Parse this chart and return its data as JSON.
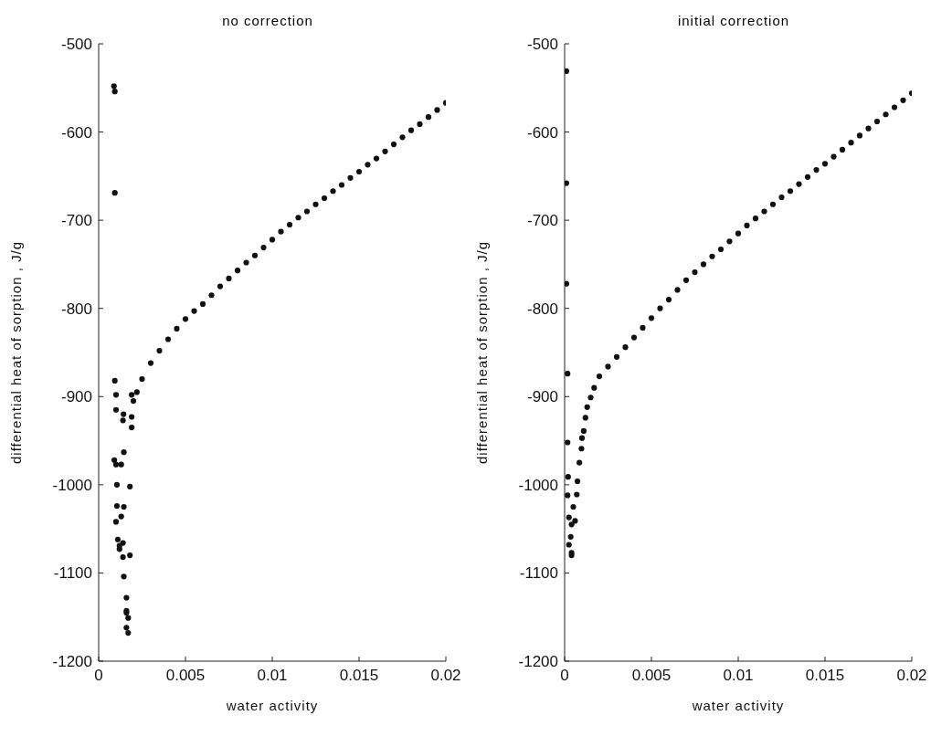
{
  "chart_data": [
    {
      "type": "scatter",
      "title": "no correction",
      "xlabel": "water activity",
      "ylabel": "differential heat of sorption , J/g",
      "xlim": [
        0,
        0.02
      ],
      "xticks": [
        0,
        0.005,
        0.01,
        0.015,
        0.02
      ],
      "ylim": [
        -1200,
        -500
      ],
      "yticks": [
        -1200,
        -1100,
        -1000,
        -900,
        -800,
        -700,
        -600,
        -500
      ],
      "grid": false,
      "marker": "circle",
      "series": [
        {
          "color": "#111111",
          "x": [
            0.00088,
            0.00093,
            0.00093,
            0.00093,
            0.001,
            0.001,
            0.00143,
            0.0014,
            0.0019,
            0.0019,
            0.0019,
            0.00145,
            0.0009,
            0.001,
            0.0013,
            0.00105,
            0.0018,
            0.00105,
            0.00145,
            0.0013,
            0.001,
            0.0011,
            0.0012,
            0.0012,
            0.0014,
            0.0018,
            0.0014,
            0.00145,
            0.0016,
            0.0016,
            0.0016,
            0.0017,
            0.0016,
            0.0017,
            0.002,
            0.0022,
            0.0025,
            0.003,
            0.0035,
            0.004,
            0.0045,
            0.005,
            0.0055,
            0.006,
            0.0065,
            0.007,
            0.0075,
            0.008,
            0.0085,
            0.009,
            0.0095,
            0.01,
            0.0105,
            0.011,
            0.0115,
            0.012,
            0.0125,
            0.013,
            0.0135,
            0.014,
            0.0145,
            0.015,
            0.0155,
            0.016,
            0.0165,
            0.017,
            0.0175,
            0.018,
            0.0185,
            0.019,
            0.0195,
            0.02
          ],
          "values": [
            -548,
            -554,
            -669,
            -882,
            -898,
            -915,
            -920,
            -927,
            -898,
            -923,
            -935,
            -963,
            -972,
            -977,
            -977,
            -1000,
            -1002,
            -1024,
            -1025,
            -1036,
            -1042,
            -1062,
            -1069,
            -1073,
            -1066,
            -1080,
            -1082,
            -1104,
            -1128,
            -1143,
            -1145,
            -1151,
            -1162,
            -1168,
            -905,
            -895,
            -880,
            -862,
            -848,
            -835,
            -823,
            -812,
            -803,
            -795,
            -785,
            -775,
            -766,
            -757,
            -748,
            -740,
            -731,
            -722,
            -713,
            -705,
            -697,
            -690,
            -682,
            -675,
            -667,
            -660,
            -652,
            -645,
            -637,
            -630,
            -622,
            -614,
            -606,
            -598,
            -591,
            -583,
            -575,
            -567
          ]
        }
      ]
    },
    {
      "type": "scatter",
      "title": "initial correction",
      "xlabel": "water activity",
      "ylabel": "differential heat of sorption , J/g",
      "xlim": [
        0,
        0.02
      ],
      "xticks": [
        0,
        0.005,
        0.01,
        0.015,
        0.02
      ],
      "ylim": [
        -1200,
        -500
      ],
      "yticks": [
        -1200,
        -1100,
        -1000,
        -900,
        -800,
        -700,
        -600,
        -500
      ],
      "grid": false,
      "marker": "circle",
      "series": [
        {
          "color": "#111111",
          "x": [
            0.0001,
            0.0001,
            0.0001,
            0.00017,
            0.00017,
            0.0002,
            0.00074,
            0.00017,
            0.0007,
            0.0005,
            0.00025,
            0.0006,
            0.0004,
            0.00035,
            0.00025,
            0.0004,
            0.0004,
            0.00085,
            0.00097,
            0.001,
            0.0011,
            0.0012,
            0.0013,
            0.0015,
            0.0017,
            0.002,
            0.0025,
            0.003,
            0.0035,
            0.004,
            0.0045,
            0.005,
            0.0055,
            0.006,
            0.0065,
            0.007,
            0.0075,
            0.008,
            0.0085,
            0.009,
            0.0095,
            0.01,
            0.0105,
            0.011,
            0.0115,
            0.012,
            0.0125,
            0.013,
            0.0135,
            0.014,
            0.0145,
            0.015,
            0.0155,
            0.016,
            0.0165,
            0.017,
            0.0175,
            0.018,
            0.0185,
            0.019,
            0.0195,
            0.02
          ],
          "values": [
            -531,
            -658,
            -772,
            -874,
            -952,
            -991,
            -996,
            -1012,
            -1011,
            -1025,
            -1037,
            -1041,
            -1045,
            -1059,
            -1068,
            -1077,
            -1080,
            -975,
            -959,
            -947,
            -939,
            -924,
            -912,
            -901,
            -890,
            -877,
            -866,
            -855,
            -844,
            -833,
            -822,
            -811,
            -800,
            -790,
            -779,
            -768,
            -759,
            -750,
            -741,
            -733,
            -724,
            -715,
            -706,
            -698,
            -690,
            -682,
            -674,
            -667,
            -659,
            -651,
            -643,
            -636,
            -628,
            -620,
            -612,
            -604,
            -596,
            -588,
            -580,
            -572,
            -564,
            -556
          ]
        }
      ]
    }
  ]
}
